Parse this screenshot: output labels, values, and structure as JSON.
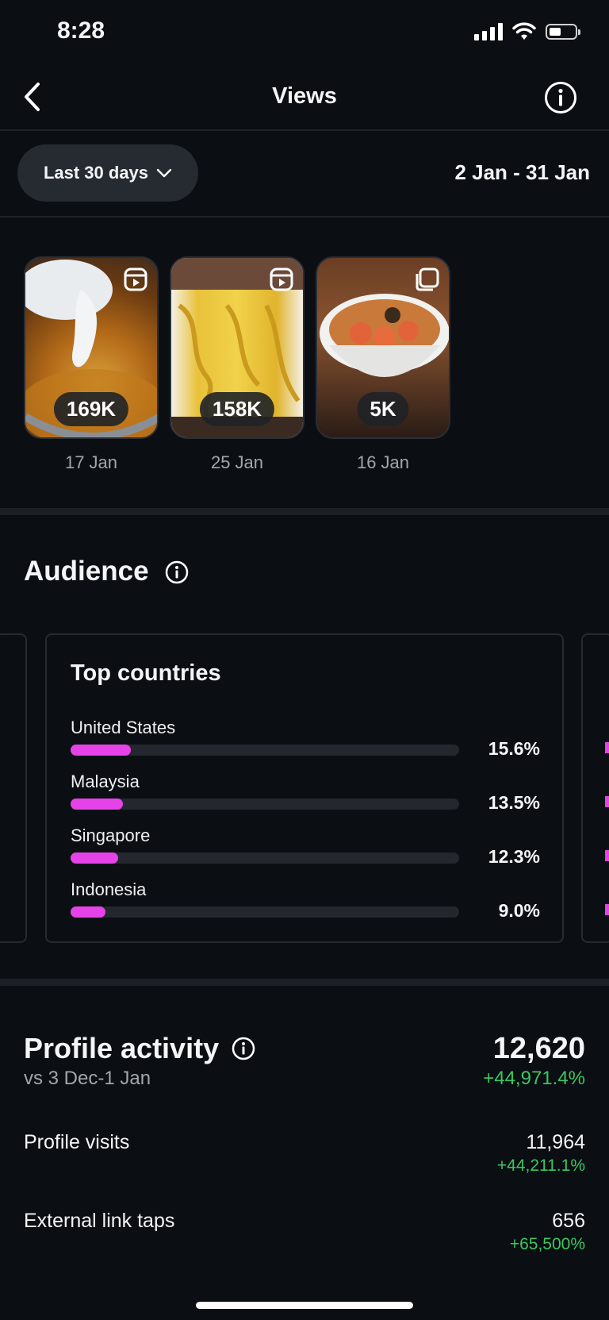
{
  "status": {
    "time": "8:28"
  },
  "header": {
    "title": "Views"
  },
  "filter": {
    "range_label": "Last 30 days",
    "date_range": "2 Jan - 31 Jan"
  },
  "media": [
    {
      "views": "169K",
      "date": "17 Jan",
      "kind": "reel"
    },
    {
      "views": "158K",
      "date": "25 Jan",
      "kind": "reel"
    },
    {
      "views": "5K",
      "date": "16 Jan",
      "kind": "carousel"
    }
  ],
  "audience": {
    "title": "Audience",
    "top_countries": {
      "title": "Top countries",
      "items": [
        {
          "name": "United States",
          "percent": "15.6%",
          "value": 15.6
        },
        {
          "name": "Malaysia",
          "percent": "13.5%",
          "value": 13.5
        },
        {
          "name": "Singapore",
          "percent": "12.3%",
          "value": 12.3
        },
        {
          "name": "Indonesia",
          "percent": "9.0%",
          "value": 9.0
        }
      ]
    }
  },
  "profile_activity": {
    "title": "Profile activity",
    "comparison": "vs 3 Dec-1 Jan",
    "total": "12,620",
    "total_change": "+44,971.4%",
    "rows": [
      {
        "label": "Profile visits",
        "value": "11,964",
        "change": "+44,211.1%"
      },
      {
        "label": "External link taps",
        "value": "656",
        "change": "+65,500%"
      }
    ]
  },
  "colors": {
    "accent": "#e543e8",
    "positive": "#3cc760",
    "background": "#0b0e13"
  }
}
